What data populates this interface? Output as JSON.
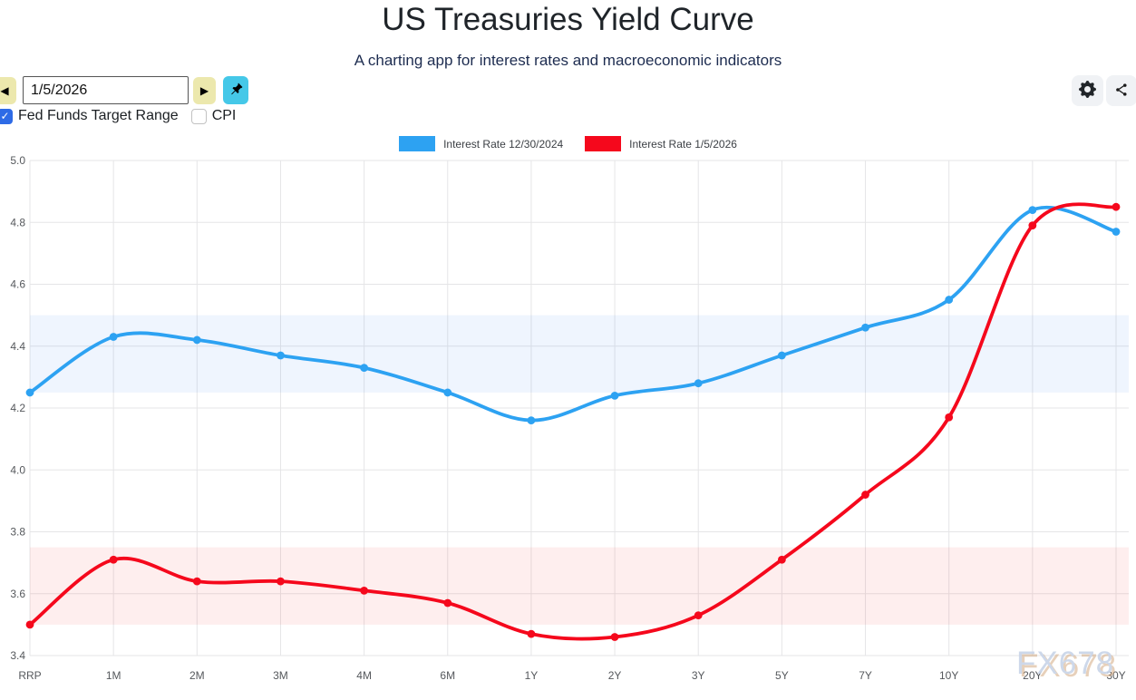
{
  "header": {
    "title": "US Treasuries Yield Curve",
    "subtitle": "A charting app for interest rates and macroeconomic indicators"
  },
  "toolbar": {
    "date_value": "1/5/2026",
    "checkboxes": [
      {
        "label": "Fed Funds Target Range",
        "checked": true
      },
      {
        "label": "CPI",
        "checked": false
      }
    ]
  },
  "icons": {
    "prev": "◀",
    "next": "▶",
    "check": "✓",
    "pin": "pushpin-icon",
    "settings": "gear-icon",
    "share": "share-icon"
  },
  "colors": {
    "series_blue": "#2da2f2",
    "series_red": "#f5081c",
    "pin_button": "#45c8e8",
    "nav_button": "#ece8ad",
    "checkbox_checked": "#2e6be6",
    "band_blue": "rgba(45,130,245,0.08)",
    "band_red": "rgba(245,40,40,0.08)"
  },
  "watermark": {
    "text": "FX678"
  },
  "chart_data": {
    "type": "line",
    "title": "US Treasuries Yield Curve",
    "categories": [
      "RRP",
      "1M",
      "2M",
      "3M",
      "4M",
      "6M",
      "1Y",
      "2Y",
      "3Y",
      "5Y",
      "7Y",
      "10Y",
      "20Y",
      "30Y"
    ],
    "series": [
      {
        "name": "Interest Rate 12/30/2024",
        "color": "#2da2f2",
        "values": [
          4.25,
          4.43,
          4.42,
          4.37,
          4.33,
          4.25,
          4.16,
          4.24,
          4.28,
          4.37,
          4.46,
          4.55,
          4.84,
          4.77
        ]
      },
      {
        "name": "Interest Rate 1/5/2026",
        "color": "#f5081c",
        "values": [
          3.5,
          3.71,
          3.64,
          3.64,
          3.61,
          3.57,
          3.47,
          3.46,
          3.53,
          3.71,
          3.92,
          4.17,
          4.79,
          4.85
        ]
      }
    ],
    "bands": [
      {
        "name": "Fed Funds Target Range 12/30/2024",
        "from": 4.25,
        "to": 4.5,
        "color": "rgba(45,130,245,0.08)"
      },
      {
        "name": "Fed Funds Target Range 1/5/2026",
        "from": 3.5,
        "to": 3.75,
        "color": "rgba(245,40,40,0.08)"
      }
    ],
    "xlabel": "",
    "ylabel": "",
    "ylim": [
      3.4,
      5.0
    ],
    "ytick_step": 0.2,
    "grid": true,
    "legend_position": "top"
  }
}
